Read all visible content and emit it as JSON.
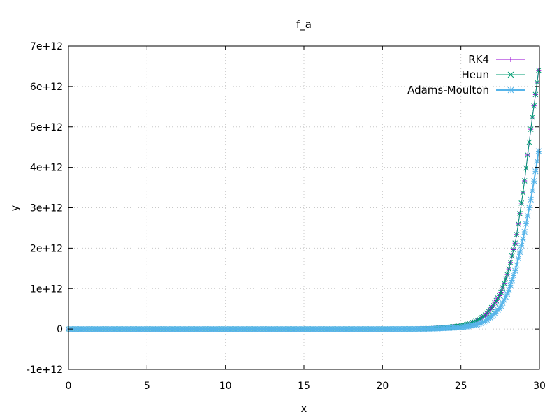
{
  "chart_data": {
    "type": "line",
    "title": "f_a",
    "xlabel": "x",
    "ylabel": "y",
    "xlim": [
      0,
      30
    ],
    "ylim": [
      -1000000000000.0,
      7000000000000.0
    ],
    "x_ticks": [
      0,
      5,
      10,
      15,
      20,
      25,
      30
    ],
    "x_tick_labels": [
      "0",
      "5",
      "10",
      "15",
      "20",
      "25",
      "30"
    ],
    "y_ticks": [
      -1000000000000.0,
      0,
      1000000000000.0,
      2000000000000.0,
      3000000000000.0,
      4000000000000.0,
      5000000000000.0,
      6000000000000.0,
      7000000000000.0
    ],
    "y_tick_labels": [
      "-1e+12",
      "0",
      "1e+12",
      "2e+12",
      "3e+12",
      "4e+12",
      "5e+12",
      "6e+12",
      "7e+12"
    ],
    "grid": true,
    "legend_position": "top-right",
    "x": [
      0,
      2,
      4,
      6,
      8,
      10,
      12,
      14,
      16,
      18,
      20,
      22,
      23,
      24,
      25,
      25.5,
      26,
      26.5,
      27,
      27.5,
      28,
      28.5,
      29,
      29.25,
      29.5,
      29.75,
      29.95
    ],
    "series": [
      {
        "name": "RK4",
        "color": "#9400d3",
        "marker": "plus",
        "values": [
          0,
          0,
          0,
          0,
          0,
          0,
          0,
          0,
          0,
          0,
          0,
          2000000000.0,
          10000000000.0,
          35000000000.0,
          75000000000.0,
          120000000000.0,
          200000000000.0,
          320000000000.0,
          550000000000.0,
          850000000000.0,
          1400000000000.0,
          2200000000000.0,
          3500000000000.0,
          4300000000000.0,
          5100000000000.0,
          5800000000000.0,
          6400000000000.0
        ]
      },
      {
        "name": "Heun",
        "color": "#009e73",
        "marker": "cross",
        "values": [
          0,
          0,
          0,
          0,
          0,
          0,
          0,
          0,
          0,
          0,
          0,
          2000000000.0,
          10000000000.0,
          35000000000.0,
          75000000000.0,
          120000000000.0,
          200000000000.0,
          320000000000.0,
          550000000000.0,
          850000000000.0,
          1400000000000.0,
          2200000000000.0,
          3500000000000.0,
          4300000000000.0,
          5100000000000.0,
          5800000000000.0,
          6400000000000.0
        ]
      },
      {
        "name": "Adams-Moulton",
        "color": "#56b4e9",
        "marker": "star",
        "values": [
          0,
          0,
          0,
          0,
          0,
          0,
          0,
          0,
          0,
          0,
          0,
          1000000000.0,
          5000000000.0,
          20000000000.0,
          40000000000.0,
          70000000000.0,
          110000000000.0,
          180000000000.0,
          330000000000.0,
          530000000000.0,
          900000000000.0,
          1500000000000.0,
          2300000000000.0,
          2800000000000.0,
          3300000000000.0,
          3900000000000.0,
          4400000000000.0
        ]
      }
    ]
  }
}
